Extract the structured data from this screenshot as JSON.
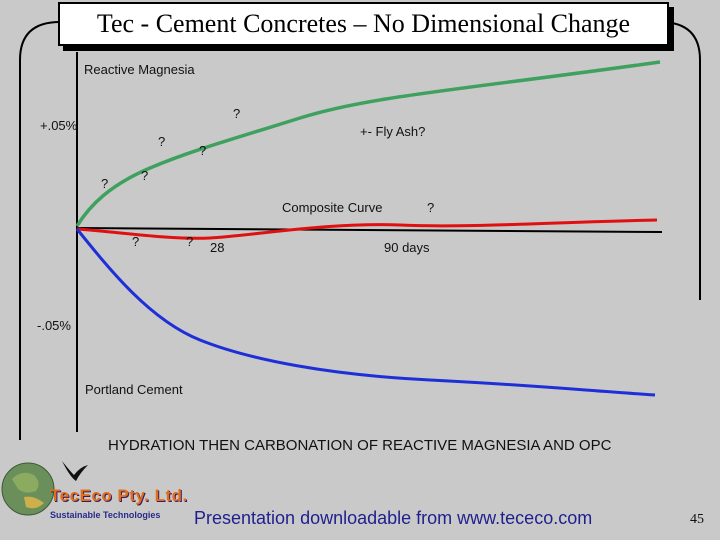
{
  "slide": {
    "title": "Tec - Cement Concretes – No Dimensional Change",
    "footer": "Presentation downloadable from www.tececo.com",
    "page_number": "45",
    "company_name": "TecEco Pty. Ltd.",
    "tagline": "Sustainable Technologies"
  },
  "chart_data": {
    "type": "line",
    "title": "",
    "caption": "HYDRATION THEN CARBONATION OF REACTIVE MAGNESIA AND OPC",
    "y_tick_labels": [
      "+.05%",
      "-.05%"
    ],
    "annotations": {
      "day28": "28",
      "day90": "90 days",
      "fly_ash": "+- Fly Ash?",
      "q": "?"
    },
    "series": [
      {
        "name": "Reactive Magnesia",
        "color": "#3fa05f",
        "trend": "expansion"
      },
      {
        "name": "Composite Curve",
        "color": "#e01010",
        "trend": "flat"
      },
      {
        "name": "Portland Cement",
        "color": "#1f2fd8",
        "trend": "shrinkage"
      }
    ]
  }
}
